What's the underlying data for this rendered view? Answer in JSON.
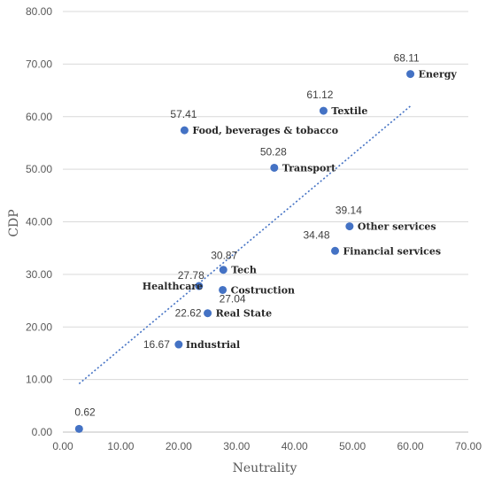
{
  "chart_data": {
    "type": "scatter",
    "title": "",
    "xlabel": "Neutrality",
    "ylabel": "CDP",
    "xlim": [
      0,
      70
    ],
    "ylim": [
      0,
      80
    ],
    "xticks": [
      "0.00",
      "10.00",
      "20.00",
      "30.00",
      "40.00",
      "50.00",
      "60.00",
      "70.00"
    ],
    "yticks": [
      "0.00",
      "10.00",
      "20.00",
      "30.00",
      "40.00",
      "50.00",
      "60.00",
      "70.00",
      "80.00"
    ],
    "grid": "horizontal",
    "marker_color": "#4472C4",
    "trendline": {
      "style": "dotted",
      "color": "#4472C4",
      "x": [
        2.8,
        60.0
      ],
      "y": [
        9.2,
        62.0
      ]
    },
    "points": [
      {
        "name": "Energy",
        "x": 60.0,
        "y": 68.11,
        "value_label": "68.11"
      },
      {
        "name": "Textile",
        "x": 45.0,
        "y": 61.12,
        "value_label": "61.12"
      },
      {
        "name": "Food, beverages & tobacco",
        "x": 21.0,
        "y": 57.41,
        "value_label": "57.41"
      },
      {
        "name": "Transport",
        "x": 36.5,
        "y": 50.28,
        "value_label": "50.28"
      },
      {
        "name": "Other services",
        "x": 49.5,
        "y": 39.14,
        "value_label": "39.14"
      },
      {
        "name": "Financial services",
        "x": 47.0,
        "y": 34.48,
        "value_label": "34.48"
      },
      {
        "name": "Tech",
        "x": 27.7,
        "y": 30.87,
        "value_label": "30.87"
      },
      {
        "name": "Healthcare",
        "x": 23.5,
        "y": 27.78,
        "value_label": "27.78"
      },
      {
        "name": "Costruction",
        "x": 27.6,
        "y": 27.04,
        "value_label": "27.04"
      },
      {
        "name": "Real State",
        "x": 25.0,
        "y": 22.62,
        "value_label": "22.62"
      },
      {
        "name": "Industrial",
        "x": 20.0,
        "y": 16.67,
        "value_label": "16.67"
      },
      {
        "name": "",
        "x": 2.8,
        "y": 0.62,
        "value_label": "0.62"
      }
    ]
  }
}
